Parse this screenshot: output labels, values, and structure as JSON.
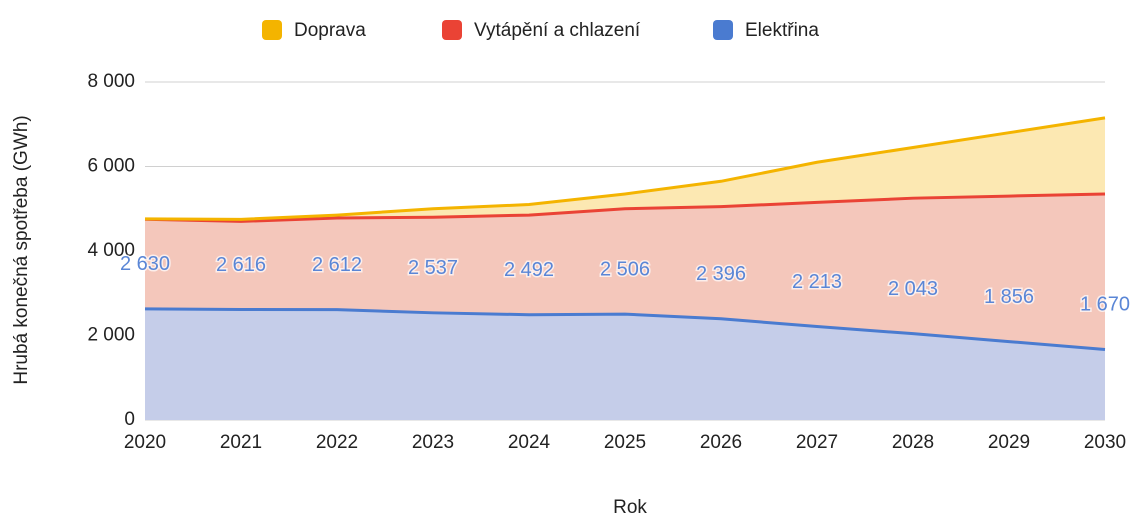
{
  "chart_data": {
    "type": "area",
    "stacked": true,
    "x_label": "Rok",
    "y_label": "Hrubá konečná spotřeba (GWh)",
    "x": [
      2020,
      2021,
      2022,
      2023,
      2024,
      2025,
      2026,
      2027,
      2028,
      2029,
      2030
    ],
    "xlim": [
      2020,
      2030
    ],
    "xticks": [
      2020,
      2021,
      2022,
      2023,
      2024,
      2025,
      2026,
      2027,
      2028,
      2029,
      2030
    ],
    "ylim": [
      0,
      8000
    ],
    "yticks": [
      0,
      {
        "value": 2000,
        "label": "2 000"
      },
      {
        "value": 4000,
        "label": "4 000"
      },
      {
        "value": 6000,
        "label": "6 000"
      },
      {
        "value": 8000,
        "label": "8 000"
      }
    ],
    "grid": true,
    "legend": "top",
    "series": [
      {
        "name": "Elektřina",
        "color": "#4a7bd0",
        "fill": "#c5cde9",
        "values": [
          2630,
          2616,
          2612,
          2537,
          2492,
          2506,
          2396,
          2213,
          2043,
          1856,
          1670
        ],
        "value_labels": [
          "2 630",
          "2 616",
          "2 612",
          "2 537",
          "2 492",
          "2 506",
          "2 396",
          "2 213",
          "2 043",
          "1 856",
          "1 670"
        ]
      },
      {
        "name": "Vytápění a chlazení",
        "color": "#ea4335",
        "fill": "#f4c7bb",
        "values": [
          2120,
          2084,
          2168,
          2263,
          2358,
          2494,
          2654,
          2937,
          3207,
          3444,
          3680
        ]
      },
      {
        "name": "Doprava",
        "color": "#f4b400",
        "fill": "#fce8b2",
        "values": [
          10,
          50,
          70,
          200,
          250,
          350,
          600,
          950,
          1200,
          1500,
          1800
        ]
      }
    ]
  }
}
